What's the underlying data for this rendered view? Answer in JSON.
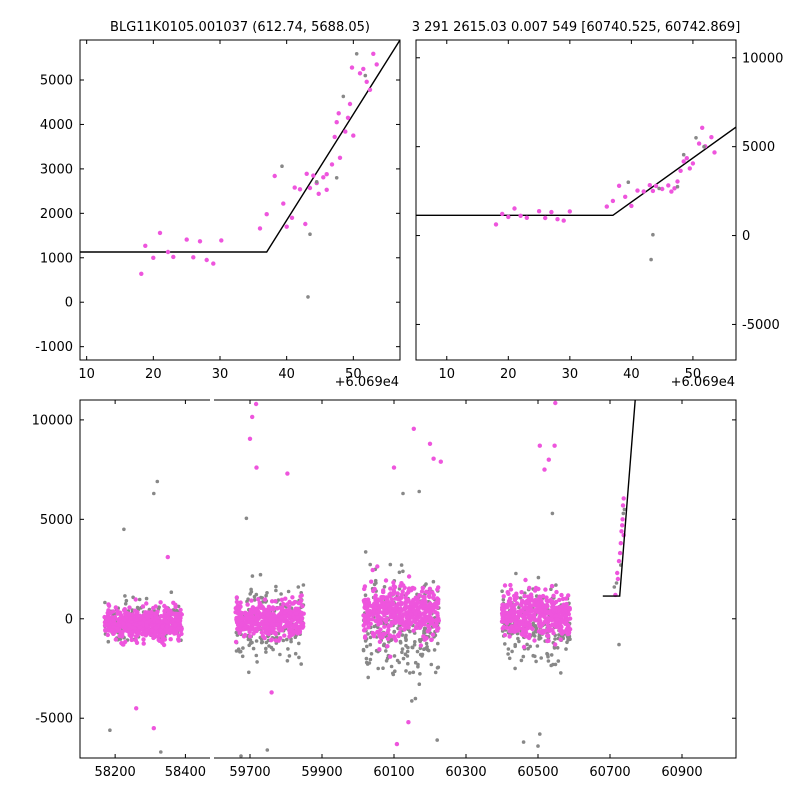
{
  "chart_data": [
    {
      "id": "top-left",
      "type": "scatter",
      "title": "BLG11K0105.001037 (612.74, 5688.05)",
      "x_offset_label": "+6.069e4",
      "xlim": [
        9,
        57
      ],
      "ylim": [
        -1300,
        5900
      ],
      "xticks": [
        10,
        20,
        30,
        40,
        50
      ],
      "yticks": [
        -1000,
        0,
        1000,
        2000,
        3000,
        4000,
        5000
      ],
      "y_axis_side": "left",
      "model_line": [
        [
          9,
          1130
        ],
        [
          37,
          1130
        ],
        [
          57,
          5900
        ]
      ],
      "series": [
        {
          "name": "pink",
          "color": "#ee55dd",
          "points": [
            [
              18.2,
              640
            ],
            [
              18.8,
              1270
            ],
            [
              20.0,
              1000
            ],
            [
              21.0,
              1560
            ],
            [
              22.2,
              1130
            ],
            [
              23.0,
              1020
            ],
            [
              25.0,
              1410
            ],
            [
              26.0,
              1010
            ],
            [
              27.0,
              1370
            ],
            [
              28.0,
              950
            ],
            [
              29.0,
              870
            ],
            [
              30.2,
              1390
            ],
            [
              36.0,
              1660
            ],
            [
              37.0,
              1980
            ],
            [
              38.2,
              2840
            ],
            [
              39.5,
              2220
            ],
            [
              40.0,
              1700
            ],
            [
              40.8,
              1900
            ],
            [
              41.2,
              2580
            ],
            [
              42.0,
              2540
            ],
            [
              42.8,
              1760
            ],
            [
              43.0,
              2890
            ],
            [
              43.5,
              2570
            ],
            [
              44.0,
              2850
            ],
            [
              44.5,
              2680
            ],
            [
              44.8,
              2440
            ],
            [
              45.5,
              2810
            ],
            [
              46.0,
              2880
            ],
            [
              46.0,
              2530
            ],
            [
              46.8,
              3100
            ],
            [
              47.2,
              3720
            ],
            [
              47.5,
              4050
            ],
            [
              47.8,
              4250
            ],
            [
              48.0,
              3250
            ],
            [
              48.8,
              3840
            ],
            [
              49.2,
              4150
            ],
            [
              49.5,
              4460
            ],
            [
              49.8,
              5280
            ],
            [
              50.0,
              3750
            ],
            [
              51.0,
              5150
            ],
            [
              51.5,
              5250
            ],
            [
              52.0,
              4960
            ],
            [
              52.5,
              4780
            ],
            [
              53.0,
              5590
            ],
            [
              53.5,
              5350
            ]
          ]
        },
        {
          "name": "gray",
          "color": "#888888",
          "points": [
            [
              39.3,
              3060
            ],
            [
              43.2,
              120
            ],
            [
              43.5,
              1530
            ],
            [
              44.5,
              2710
            ],
            [
              47.5,
              2800
            ],
            [
              48.5,
              4630
            ],
            [
              50.5,
              5590
            ],
            [
              51.8,
              5100
            ]
          ]
        }
      ]
    },
    {
      "id": "top-right",
      "type": "scatter",
      "title": "3 291 2615.03 0.007 549 [60740.525, 60742.869]",
      "x_offset_label": "+6.069e4",
      "xlim": [
        5,
        57
      ],
      "ylim": [
        -7000,
        11000
      ],
      "xticks": [
        10,
        20,
        30,
        40,
        50
      ],
      "yticks": [
        -5000,
        0,
        5000,
        10000
      ],
      "y_axis_side": "right",
      "model_line": [
        [
          5,
          1140
        ],
        [
          37,
          1140
        ],
        [
          57,
          6100
        ]
      ],
      "series": [
        {
          "name": "pink",
          "color": "#ee55dd",
          "points": [
            [
              18.0,
              630
            ],
            [
              19.0,
              1220
            ],
            [
              20.0,
              1050
            ],
            [
              21.0,
              1520
            ],
            [
              22.0,
              1110
            ],
            [
              23.0,
              1000
            ],
            [
              25.0,
              1370
            ],
            [
              26.0,
              990
            ],
            [
              27.0,
              1320
            ],
            [
              28.0,
              920
            ],
            [
              29.0,
              840
            ],
            [
              30.0,
              1360
            ],
            [
              36.0,
              1630
            ],
            [
              37.0,
              1950
            ],
            [
              38.0,
              2800
            ],
            [
              39.0,
              2180
            ],
            [
              40.0,
              1670
            ],
            [
              41.0,
              2530
            ],
            [
              42.0,
              2480
            ],
            [
              43.0,
              2830
            ],
            [
              43.5,
              2510
            ],
            [
              44.0,
              2790
            ],
            [
              45.0,
              2620
            ],
            [
              46.0,
              2820
            ],
            [
              46.5,
              2470
            ],
            [
              47.0,
              2660
            ],
            [
              47.5,
              3040
            ],
            [
              48.0,
              3640
            ],
            [
              48.5,
              4170
            ],
            [
              49.0,
              4350
            ],
            [
              49.5,
              3780
            ],
            [
              50.0,
              4060
            ],
            [
              51.0,
              5170
            ],
            [
              51.5,
              6060
            ],
            [
              52.0,
              5020
            ],
            [
              53.0,
              5530
            ],
            [
              53.5,
              4680
            ]
          ]
        },
        {
          "name": "gray",
          "color": "#888888",
          "points": [
            [
              39.5,
              3000
            ],
            [
              43.2,
              -1350
            ],
            [
              43.5,
              50
            ],
            [
              44.5,
              2650
            ],
            [
              47.5,
              2750
            ],
            [
              48.5,
              4550
            ],
            [
              50.5,
              5500
            ],
            [
              51.8,
              5000
            ]
          ]
        }
      ]
    },
    {
      "id": "bottom",
      "type": "scatter",
      "title": "",
      "xlim": [
        58100,
        61050
      ],
      "ylim": [
        -7000,
        11000
      ],
      "xticks": [
        58200,
        58400,
        59700,
        59900,
        60100,
        60300,
        60500,
        60700,
        60900
      ],
      "yticks": [
        -5000,
        0,
        5000,
        10000
      ],
      "y_axis_side": "left",
      "model_line": [
        [
          60680,
          1140
        ],
        [
          60727,
          1140
        ],
        [
          60770,
          11000
        ]
      ],
      "seasons": [
        {
          "name": "season-1",
          "start": 58170,
          "end": 58390,
          "pink_mean": -300,
          "pink_sd": 380,
          "gray_mean": -150,
          "gray_sd": 500,
          "pink_count": 520,
          "gray_count": 180
        },
        {
          "name": "season-2",
          "start": 59660,
          "end": 59850,
          "pink_mean": 0,
          "pink_sd": 450,
          "gray_mean": -300,
          "gray_sd": 900,
          "pink_count": 420,
          "gray_count": 200
        },
        {
          "name": "season-3",
          "start": 60015,
          "end": 60225,
          "pink_mean": 300,
          "pink_sd": 650,
          "gray_mean": -500,
          "gray_sd": 1300,
          "pink_count": 460,
          "gray_count": 240
        },
        {
          "name": "season-4",
          "start": 60400,
          "end": 60590,
          "pink_mean": 200,
          "pink_sd": 550,
          "gray_mean": -300,
          "gray_sd": 1000,
          "pink_count": 420,
          "gray_count": 200
        }
      ],
      "outliers": {
        "pink": [
          [
            59706,
            10150
          ],
          [
            59717,
            10800
          ],
          [
            59700,
            9050
          ],
          [
            59718,
            7600
          ],
          [
            59804,
            7300
          ],
          [
            60155,
            9550
          ],
          [
            60200,
            8800
          ],
          [
            60210,
            8050
          ],
          [
            60230,
            7900
          ],
          [
            60100,
            7600
          ],
          [
            60548,
            10850
          ],
          [
            60505,
            8700
          ],
          [
            60546,
            8700
          ],
          [
            60530,
            8000
          ],
          [
            60518,
            7500
          ],
          [
            58350,
            3100
          ],
          [
            60108,
            -6300
          ],
          [
            59760,
            -3700
          ],
          [
            58260,
            -4500
          ],
          [
            58310,
            -5500
          ],
          [
            60140,
            -5200
          ]
        ],
        "gray": [
          [
            58320,
            6900
          ],
          [
            58310,
            6300
          ],
          [
            58225,
            4500
          ],
          [
            58185,
            -5600
          ],
          [
            58330,
            -6700
          ],
          [
            59748,
            -6600
          ],
          [
            59675,
            -6900
          ],
          [
            60220,
            -6100
          ],
          [
            60460,
            -6200
          ],
          [
            60500,
            -6400
          ],
          [
            60505,
            -5800
          ],
          [
            60170,
            6400
          ],
          [
            60125,
            6300
          ],
          [
            60540,
            5300
          ],
          [
            59690,
            5050
          ]
        ]
      },
      "event": {
        "pink": [
          [
            60715,
            1200
          ],
          [
            60720,
            2300
          ],
          [
            60722,
            2000
          ],
          [
            60725,
            2900
          ],
          [
            60728,
            3300
          ],
          [
            60730,
            3800
          ],
          [
            60732,
            4400
          ],
          [
            60735,
            5000
          ],
          [
            60736,
            5700
          ],
          [
            60738,
            6050
          ],
          [
            60734,
            4700
          ],
          [
            60738,
            4200
          ]
        ],
        "gray": [
          [
            60712,
            1600
          ],
          [
            60718,
            1800
          ],
          [
            60725,
            -1300
          ],
          [
            60730,
            2700
          ],
          [
            60737,
            5300
          ],
          [
            60740,
            5500
          ]
        ]
      }
    }
  ]
}
